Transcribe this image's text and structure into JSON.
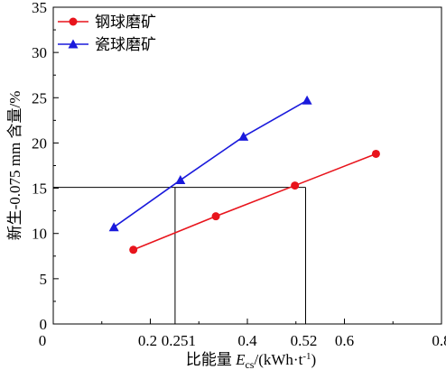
{
  "chart_data": {
    "type": "line",
    "xlabel": {
      "main": "比能量 ",
      "symbol": "E",
      "subscript": "cs",
      "unit_pre": "/(kWh·t",
      "sup": "-1",
      "unit_post": ")"
    },
    "ylabel": "新生-0.075 mm 含量/%",
    "xlim": [
      0,
      0.8
    ],
    "ylim": [
      0,
      35
    ],
    "x_ticks": [
      0.2,
      0.251,
      0.4,
      0.52,
      0.6,
      0.8
    ],
    "x_tick_labels": [
      "0.2",
      "0.251",
      "0.4",
      "0.52",
      "0.6",
      "0.8"
    ],
    "y_ticks": [
      0,
      5,
      10,
      15,
      20,
      25,
      30,
      35
    ],
    "y_tick_labels": [
      "0",
      "5",
      "10",
      "15",
      "20",
      "25",
      "30",
      "35"
    ],
    "legend_position": "top-left",
    "series": [
      {
        "name": "钢球磨矿",
        "color": "#e8141c",
        "marker": "circle",
        "x": [
          0.165,
          0.335,
          0.498,
          0.665
        ],
        "y": [
          8.2,
          11.9,
          15.3,
          18.8
        ]
      },
      {
        "name": "瓷球磨矿",
        "color": "#1a1adc",
        "marker": "triangle",
        "x": [
          0.125,
          0.262,
          0.392,
          0.523
        ],
        "y": [
          10.7,
          15.9,
          20.7,
          24.7
        ]
      }
    ],
    "reference_lines": {
      "y": 15.1,
      "x_points": [
        0.251,
        0.52
      ],
      "color": "#000000"
    }
  }
}
